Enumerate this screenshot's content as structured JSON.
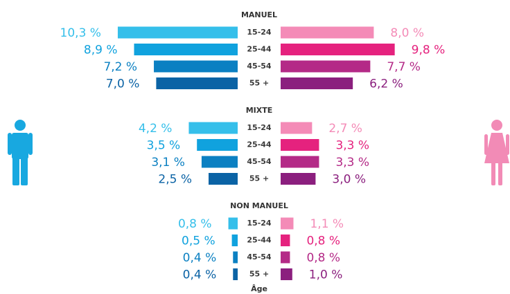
{
  "chart_data": {
    "type": "butterfly",
    "xlabel": "Âge",
    "groups": [
      {
        "title": "MANUEL",
        "categories": [
          "15-24",
          "25-44",
          "45-54",
          "55 +"
        ],
        "series": [
          {
            "side": "left",
            "color": [
              "#35bfea",
              "#10a2de",
              "#0b80c2",
              "#0b63a5"
            ],
            "values": [
              10.3,
              8.9,
              7.2,
              7.0
            ],
            "value_labels": [
              "10,3 %",
              "8,9 %",
              "7,2 %",
              "7,0 %"
            ]
          },
          {
            "side": "right",
            "color": [
              "#f48bb7",
              "#e5227e",
              "#b42a87",
              "#8b1f7e"
            ],
            "values": [
              8.0,
              9.8,
              7.7,
              6.2
            ],
            "value_labels": [
              "8,0 %",
              "9,8 %",
              "7,7 %",
              "6,2 %"
            ]
          }
        ]
      },
      {
        "title": "MIXTE",
        "categories": [
          "15-24",
          "25-44",
          "45-54",
          "55 +"
        ],
        "series": [
          {
            "side": "left",
            "color": [
              "#35bfea",
              "#10a2de",
              "#0b80c2",
              "#0b63a5"
            ],
            "values": [
              4.2,
              3.5,
              3.1,
              2.5
            ],
            "value_labels": [
              "4,2 %",
              "3,5 %",
              "3,1 %",
              "2,5 %"
            ]
          },
          {
            "side": "right",
            "color": [
              "#f48bb7",
              "#e5227e",
              "#b42a87",
              "#8b1f7e"
            ],
            "values": [
              2.7,
              3.3,
              3.3,
              3.0
            ],
            "value_labels": [
              "2,7 %",
              "3,3 %",
              "3,3 %",
              "3,0 %"
            ]
          }
        ]
      },
      {
        "title": "NON MANUEL",
        "categories": [
          "15-24",
          "25-44",
          "45-54",
          "55 +"
        ],
        "series": [
          {
            "side": "left",
            "color": [
              "#35bfea",
              "#10a2de",
              "#0b80c2",
              "#0b63a5"
            ],
            "values": [
              0.8,
              0.5,
              0.4,
              0.4
            ],
            "value_labels": [
              "0,8 %",
              "0,5 %",
              "0,4 %",
              "0,4 %"
            ]
          },
          {
            "side": "right",
            "color": [
              "#f48bb7",
              "#e5227e",
              "#b42a87",
              "#8b1f7e"
            ],
            "values": [
              1.1,
              0.8,
              0.8,
              1.0
            ],
            "value_labels": [
              "1,1 %",
              "0,8 %",
              "0,8 %",
              "1,0 %"
            ]
          }
        ]
      }
    ]
  }
}
